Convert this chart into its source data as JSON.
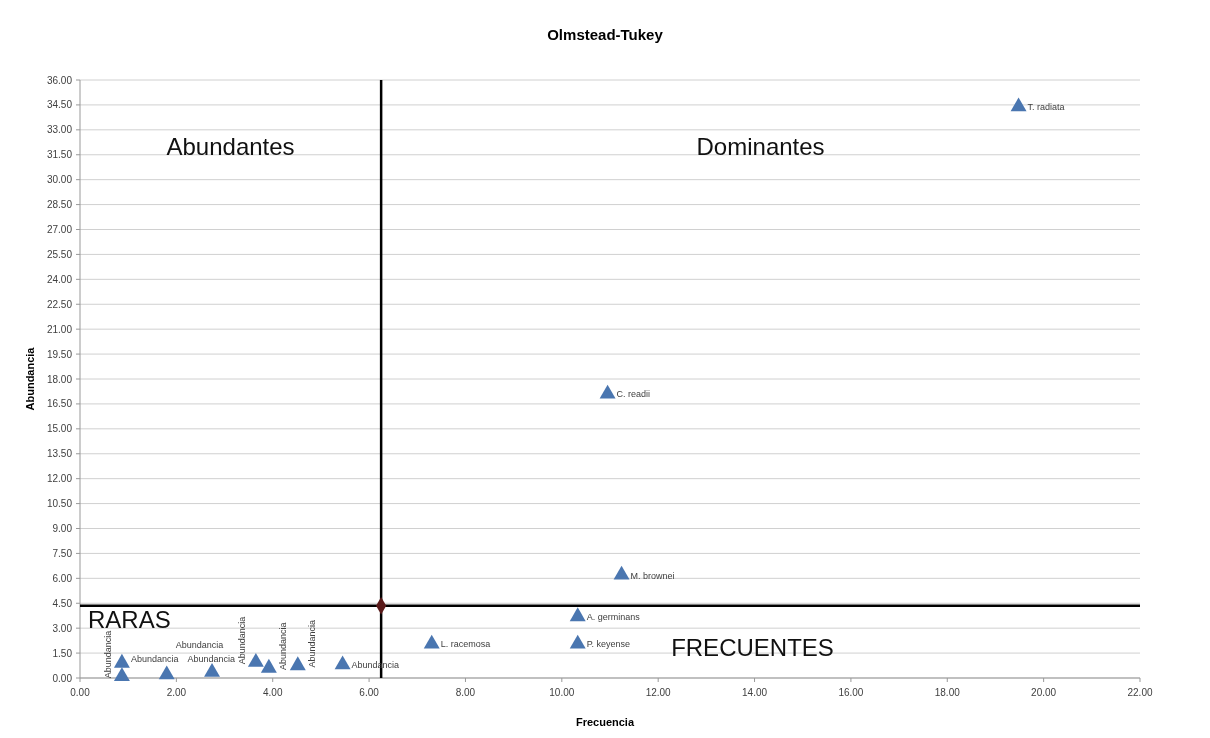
{
  "chart_data": {
    "type": "scatter",
    "title": "Olmstead-Tukey",
    "xlabel": "Frecuencia",
    "ylabel": "Abundancia",
    "marker": "triangle",
    "grid": "y",
    "xlim": [
      0,
      22
    ],
    "xticks": [
      {
        "value": 0,
        "label": "0.00"
      },
      {
        "value": 2,
        "label": "2.00"
      },
      {
        "value": 4,
        "label": "4.00"
      },
      {
        "value": 6,
        "label": "6.00"
      },
      {
        "value": 8,
        "label": "8.00"
      },
      {
        "value": 10,
        "label": "10.00"
      },
      {
        "value": 12,
        "label": "12.00"
      },
      {
        "value": 14,
        "label": "14.00"
      },
      {
        "value": 16,
        "label": "16.00"
      },
      {
        "value": 18,
        "label": "18.00"
      },
      {
        "value": 20,
        "label": "20.00"
      },
      {
        "value": 22,
        "label": "22.00"
      }
    ],
    "ylim": [
      0,
      36
    ],
    "yticks": [
      {
        "value": 0,
        "label": "0.00"
      },
      {
        "value": 1.5,
        "label": "1.50"
      },
      {
        "value": 3,
        "label": "3.00"
      },
      {
        "value": 4.5,
        "label": "4.50"
      },
      {
        "value": 6,
        "label": "6.00"
      },
      {
        "value": 7.5,
        "label": "7.50"
      },
      {
        "value": 9,
        "label": "9.00"
      },
      {
        "value": 10.5,
        "label": "10.50"
      },
      {
        "value": 12,
        "label": "12.00"
      },
      {
        "value": 13.5,
        "label": "13.50"
      },
      {
        "value": 15,
        "label": "15.00"
      },
      {
        "value": 16.5,
        "label": "16.50"
      },
      {
        "value": 18,
        "label": "18.00"
      },
      {
        "value": 19.5,
        "label": "19.50"
      },
      {
        "value": 21,
        "label": "21.00"
      },
      {
        "value": 22.5,
        "label": "22.50"
      },
      {
        "value": 24,
        "label": "24.00"
      },
      {
        "value": 25.5,
        "label": "25.50"
      },
      {
        "value": 27,
        "label": "27.00"
      },
      {
        "value": 28.5,
        "label": "28.50"
      },
      {
        "value": 30,
        "label": "30.00"
      },
      {
        "value": 31.5,
        "label": "31.50"
      },
      {
        "value": 33,
        "label": "33.00"
      },
      {
        "value": 34.5,
        "label": "34.50"
      },
      {
        "value": 36,
        "label": "36.00"
      }
    ],
    "ref_lines": [
      {
        "axis": "x",
        "value": 6.25,
        "color": "#000000"
      },
      {
        "axis": "y",
        "value": 4.35,
        "color": "#000000"
      }
    ],
    "annotations": [
      "Abundantes",
      "Dominantes",
      "RARAS",
      "FRECUENTES"
    ],
    "series": [
      {
        "name": "T. radiata",
        "color": "#4a76b0",
        "x": [
          19.48
        ],
        "values": [
          34.4
        ]
      },
      {
        "name": "C. readii",
        "color": "#4a76b0",
        "x": [
          10.95
        ],
        "values": [
          17.1
        ]
      },
      {
        "name": "M. brownei",
        "color": "#4a76b0",
        "x": [
          11.24
        ],
        "values": [
          6.2
        ]
      },
      {
        "name": "A. germinans",
        "color": "#4a76b0",
        "x": [
          10.33
        ],
        "values": [
          3.7
        ]
      },
      {
        "name": "P. keyense",
        "color": "#4a76b0",
        "x": [
          10.33
        ],
        "values": [
          2.05
        ]
      },
      {
        "name": "L. racemosa",
        "color": "#4a76b0",
        "x": [
          7.3
        ],
        "values": [
          2.05
        ]
      },
      {
        "name": "Abundancia",
        "color": "#4a76b0",
        "x": [
          0.87
        ],
        "values": [
          0.9
        ]
      },
      {
        "name": "Abundancia",
        "color": "#4a76b0",
        "x": [
          0.87
        ],
        "values": [
          0.1
        ]
      },
      {
        "name": "Abundancia",
        "color": "#4a76b0",
        "x": [
          1.8
        ],
        "values": [
          0.2
        ]
      },
      {
        "name": "Abundancia",
        "color": "#4a76b0",
        "x": [
          2.74
        ],
        "values": [
          0.35
        ]
      },
      {
        "name": "Abundancia",
        "color": "#4a76b0",
        "x": [
          3.65
        ],
        "values": [
          0.95
        ]
      },
      {
        "name": "Abundancia",
        "color": "#4a76b0",
        "x": [
          3.92
        ],
        "values": [
          0.6
        ]
      },
      {
        "name": "Abundancia",
        "color": "#4a76b0",
        "x": [
          4.52
        ],
        "values": [
          0.75
        ]
      },
      {
        "name": "Abundancia",
        "color": "#4a76b0",
        "x": [
          5.45
        ],
        "values": [
          0.8
        ]
      },
      {
        "color": "#5a1a1a",
        "marker": "diamond",
        "x": [
          6.25
        ],
        "values": [
          4.35
        ]
      }
    ]
  }
}
